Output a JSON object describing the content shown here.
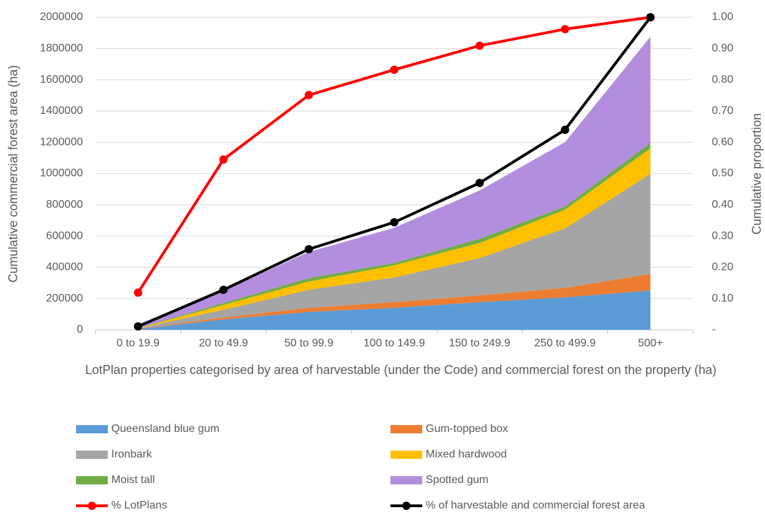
{
  "chart_data": {
    "type": "stacked-area-line",
    "categories": [
      "0 to 19.9",
      "20 to 49.9",
      "50 to 99.9",
      "100 to 149.9",
      "150 to 249.9",
      "250 to 499.9",
      "500+"
    ],
    "xlabel": "LotPlan properties categorised by area of harvestable (under the Code) and commercial forest on the property (ha)",
    "ylabel": "Cumulative commercial forest area (ha)",
    "y2label": "Cumulative proportion",
    "ylim": [
      0,
      2000000
    ],
    "yticks": [
      0,
      200000,
      400000,
      600000,
      800000,
      1000000,
      1200000,
      1400000,
      1600000,
      1800000,
      2000000
    ],
    "y2lim": [
      0,
      1
    ],
    "y2ticks": [
      {
        "value": 0,
        "label": "-"
      },
      {
        "value": 0.1,
        "label": "0.10"
      },
      {
        "value": 0.2,
        "label": "0.20"
      },
      {
        "value": 0.3,
        "label": "0.30"
      },
      {
        "value": 0.4,
        "label": "0.40"
      },
      {
        "value": 0.5,
        "label": "0.50"
      },
      {
        "value": 0.6,
        "label": "0.60"
      },
      {
        "value": 0.7,
        "label": "0.70"
      },
      {
        "value": 0.8,
        "label": "0.80"
      },
      {
        "value": 0.9,
        "label": "0.90"
      },
      {
        "value": 1,
        "label": "1.00"
      }
    ],
    "grid": true,
    "legend": "bottom",
    "series": [
      {
        "name": "Queensland blue gum",
        "type": "area",
        "color": "#5b9bd5",
        "values": [
          5000,
          66000,
          115000,
          141000,
          177000,
          208000,
          252000
        ]
      },
      {
        "name": "Gum-topped box",
        "type": "area",
        "color": "#ed7d31",
        "values": [
          1000,
          13000,
          26000,
          36000,
          44000,
          61000,
          106000
        ]
      },
      {
        "name": "Ironbark",
        "type": "area",
        "color": "#a5a5a5",
        "values": [
          3000,
          49000,
          115000,
          158000,
          238000,
          380000,
          640000
        ]
      },
      {
        "name": "Mixed hardwood",
        "type": "area",
        "color": "#ffc000",
        "values": [
          1000,
          31000,
          53000,
          78000,
          97000,
          119000,
          163000
        ]
      },
      {
        "name": "Moist tall",
        "type": "area",
        "color": "#70ad47",
        "values": [
          500,
          13000,
          22000,
          15000,
          27000,
          22000,
          36000
        ]
      },
      {
        "name": "Spotted gum",
        "type": "area",
        "color": "#b48ede",
        "values": [
          2000,
          78000,
          168000,
          225000,
          309000,
          411000,
          679000
        ]
      },
      {
        "name": "% LotPlans",
        "type": "line",
        "axis": "y2",
        "color": "#ff0000",
        "values": [
          0.119,
          0.545,
          0.751,
          0.832,
          0.909,
          0.962,
          1.0
        ]
      },
      {
        "name": "% of harvestable and commercial forest area",
        "type": "line",
        "axis": "y2",
        "color": "#000000",
        "values": [
          0.011,
          0.128,
          0.258,
          0.344,
          0.47,
          0.64,
          1.0
        ]
      }
    ]
  }
}
